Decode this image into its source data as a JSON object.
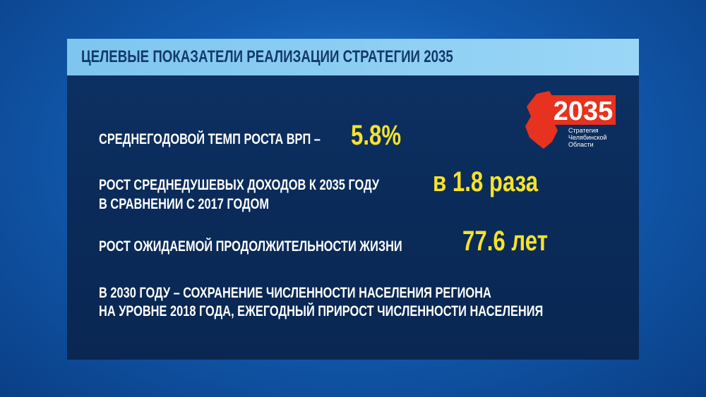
{
  "header": {
    "title": "ЦЕЛЕВЫЕ ПОКАЗАТЕЛИ РЕАЛИЗАЦИИ СТРАТЕГИИ 2035"
  },
  "logo": {
    "year": "2035",
    "lines": [
      "Стратегия",
      "Челябинской",
      "Области"
    ]
  },
  "items": [
    {
      "lines": [
        "СРЕДНЕГОДОВОЙ ТЕМП РОСТА ВРП –"
      ],
      "value": "5.8%"
    },
    {
      "lines": [
        "РОСТ СРЕДНЕДУШЕВЫХ ДОХОДОВ К 2035 ГОДУ",
        "В СРАВНЕНИИ С 2017 ГОДОМ"
      ],
      "value": "в 1.8 раза"
    },
    {
      "lines": [
        "РОСТ ОЖИДАЕМОЙ ПРОДОЛЖИТЕЛЬНОСТИ ЖИЗНИ"
      ],
      "value": "77.6 лет"
    },
    {
      "lines": [
        "В 2030 ГОДУ – СОХРАНЕНИЕ ЧИСЛЕННОСТИ НАСЕЛЕНИЯ РЕГИОНА",
        "НА УРОВНЕ 2018 ГОДА, ЕЖЕГОДНЫЙ ПРИРОСТ ЧИСЛЕННОСТИ НАСЕЛЕНИЯ"
      ]
    }
  ]
}
